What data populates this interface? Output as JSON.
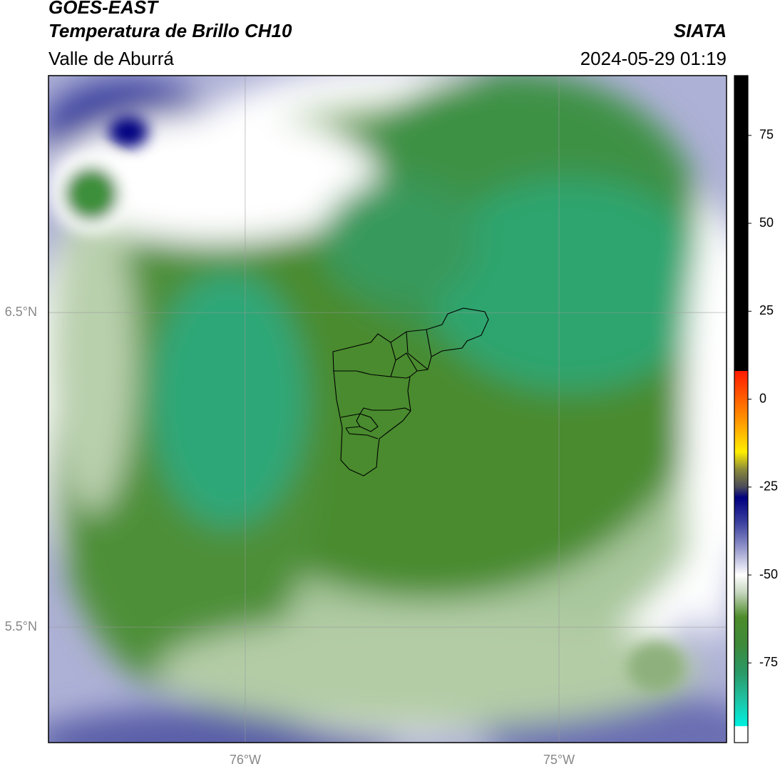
{
  "header": {
    "title": "GOES-EAST",
    "subtitle": "Temperatura de Brillo CH10",
    "source": "SIATA",
    "region": "Valle de Aburrá",
    "datetime": "2024-05-29 01:19"
  },
  "map": {
    "xlim": [
      -76.627,
      -74.466
    ],
    "ylim": [
      5.133,
      7.253
    ],
    "xticks": [
      {
        "value": -76,
        "label": "76°W"
      },
      {
        "value": -75,
        "label": "75°W"
      }
    ],
    "yticks": [
      {
        "value": 6.5,
        "label": "6.5°N"
      },
      {
        "value": 5.5,
        "label": "5.5°N"
      }
    ],
    "grid": true
  },
  "colorbar": {
    "lim": [
      -93,
      92
    ],
    "ticks": [
      75,
      50,
      25,
      0,
      -25,
      -50,
      -75
    ],
    "under_color": "#ffffff",
    "colormap": [
      {
        "value": 92,
        "color": "#000000"
      },
      {
        "value": 8,
        "color": "#000000"
      },
      {
        "value": 8,
        "color": "#ff1a00"
      },
      {
        "value": -5,
        "color": "#ff8c00"
      },
      {
        "value": -15,
        "color": "#ffee00"
      },
      {
        "value": -20,
        "color": "#8a8a3a"
      },
      {
        "value": -25,
        "color": "#4a4a5a"
      },
      {
        "value": -28,
        "color": "#000080"
      },
      {
        "value": -35,
        "color": "#3a3f9e"
      },
      {
        "value": -42,
        "color": "#8f92c8"
      },
      {
        "value": -50,
        "color": "#ffffff"
      },
      {
        "value": -55,
        "color": "#c5d6be"
      },
      {
        "value": -62,
        "color": "#4d8c2a"
      },
      {
        "value": -70,
        "color": "#3d8a3a"
      },
      {
        "value": -78,
        "color": "#2a9a68"
      },
      {
        "value": -85,
        "color": "#20c0a0"
      },
      {
        "value": -93,
        "color": "#00f0e0"
      }
    ]
  }
}
